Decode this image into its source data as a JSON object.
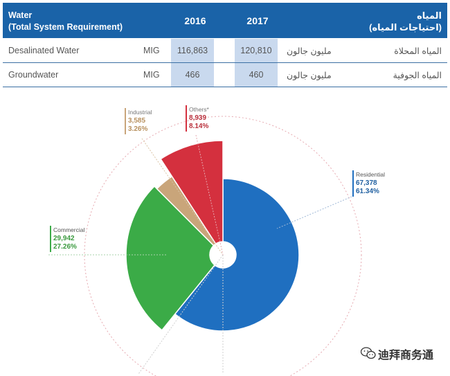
{
  "table": {
    "header_en_line1": "Water",
    "header_en_line2": "(Total System Requirement)",
    "year1": "2016",
    "year2": "2017",
    "header_ar_line1": "المياه",
    "header_ar_line2": "(احتياجات المياه)",
    "rows": [
      {
        "label": "Desalinated Water",
        "unit": "MIG",
        "v2016": "116,863",
        "v2017": "120,810",
        "unit_ar": "مليون جالون",
        "label_ar": "المياه المحلاة"
      },
      {
        "label": "Groundwater",
        "unit": "MIG",
        "v2016": "466",
        "v2017": "460",
        "unit_ar": "مليون جالون",
        "label_ar": "المياه الجوفية"
      }
    ]
  },
  "chart_data": {
    "type": "pie",
    "subtype": "polar-area-donut",
    "title": "",
    "categories": [
      "Residential",
      "Commercial",
      "Industrial",
      "Others*"
    ],
    "values": [
      67378,
      29942,
      3585,
      8939
    ],
    "value_labels": [
      "67,378",
      "29,942",
      "3,585",
      "8,939"
    ],
    "percent_labels": [
      "61.34%",
      "27.26%",
      "3.26%",
      "8.14%"
    ],
    "colors": [
      "#1f6fc0",
      "#3bab47",
      "#c9a57a",
      "#d4303e"
    ],
    "text_colors": [
      "#1f5fa0",
      "#3b9a3f",
      "#b8915f",
      "#b9303c"
    ]
  },
  "watermark": {
    "text": "迪拜商务通",
    "icon": "wechat-icon"
  }
}
